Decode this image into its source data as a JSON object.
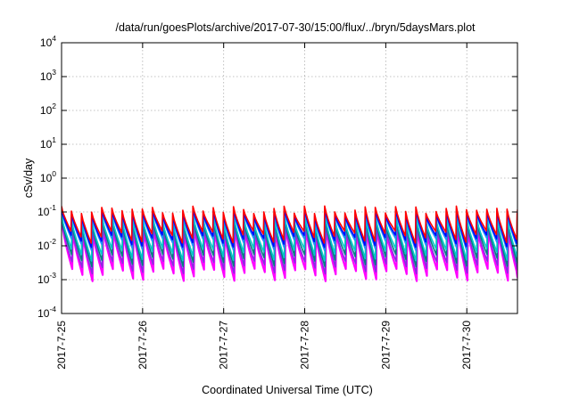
{
  "chart_data": {
    "type": "line",
    "title": "/data/run/goesPlots/archive/2017-07-30/15:00/flux/../bryn/5daysMars.plot",
    "xlabel": "Coordinated Universal Time (UTC)",
    "ylabel": "cSv/day",
    "x_tick_labels": [
      "2017-7-25",
      "2017-7-26",
      "2017-7-27",
      "2017-7-28",
      "2017-7-29",
      "2017-7-30"
    ],
    "xlim": [
      "2017-07-25T00:00",
      "2017-07-30T15:00"
    ],
    "yscale": "log",
    "ylim": [
      0.0001,
      10000
    ],
    "y_tick_labels": [
      {
        "base": "10",
        "exp": "-4"
      },
      {
        "base": "10",
        "exp": "-3"
      },
      {
        "base": "10",
        "exp": "-2"
      },
      {
        "base": "10",
        "exp": "-1"
      },
      {
        "base": "10",
        "exp": "0"
      },
      {
        "base": "10",
        "exp": "1"
      },
      {
        "base": "10",
        "exp": "2"
      },
      {
        "base": "10",
        "exp": "3"
      },
      {
        "base": "10",
        "exp": "4"
      }
    ],
    "grid": true,
    "legend": "none",
    "sawtooth_period_hours": 3,
    "series": [
      {
        "color": "#ff00ff",
        "peak": 0.03,
        "trough": 0.0015,
        "lag_hours": 0.3
      },
      {
        "color": "#8a2be2",
        "peak": 0.035,
        "trough": 0.0025,
        "lag_hours": 0.2
      },
      {
        "color": "#008080",
        "peak": 0.05,
        "trough": 0.004,
        "lag_hours": 0.1
      },
      {
        "color": "#00c8c8",
        "peak": 0.06,
        "trough": 0.006,
        "lag_hours": 0.05
      },
      {
        "color": "#1e90ff",
        "peak": 0.09,
        "trough": 0.012,
        "lag_hours": 0.0
      },
      {
        "color": "#0000ff",
        "peak": 0.1,
        "trough": 0.015,
        "lag_hours": -0.05
      },
      {
        "color": "#ff0000",
        "peak": 0.12,
        "trough": 0.02,
        "lag_hours": -0.1
      }
    ]
  }
}
